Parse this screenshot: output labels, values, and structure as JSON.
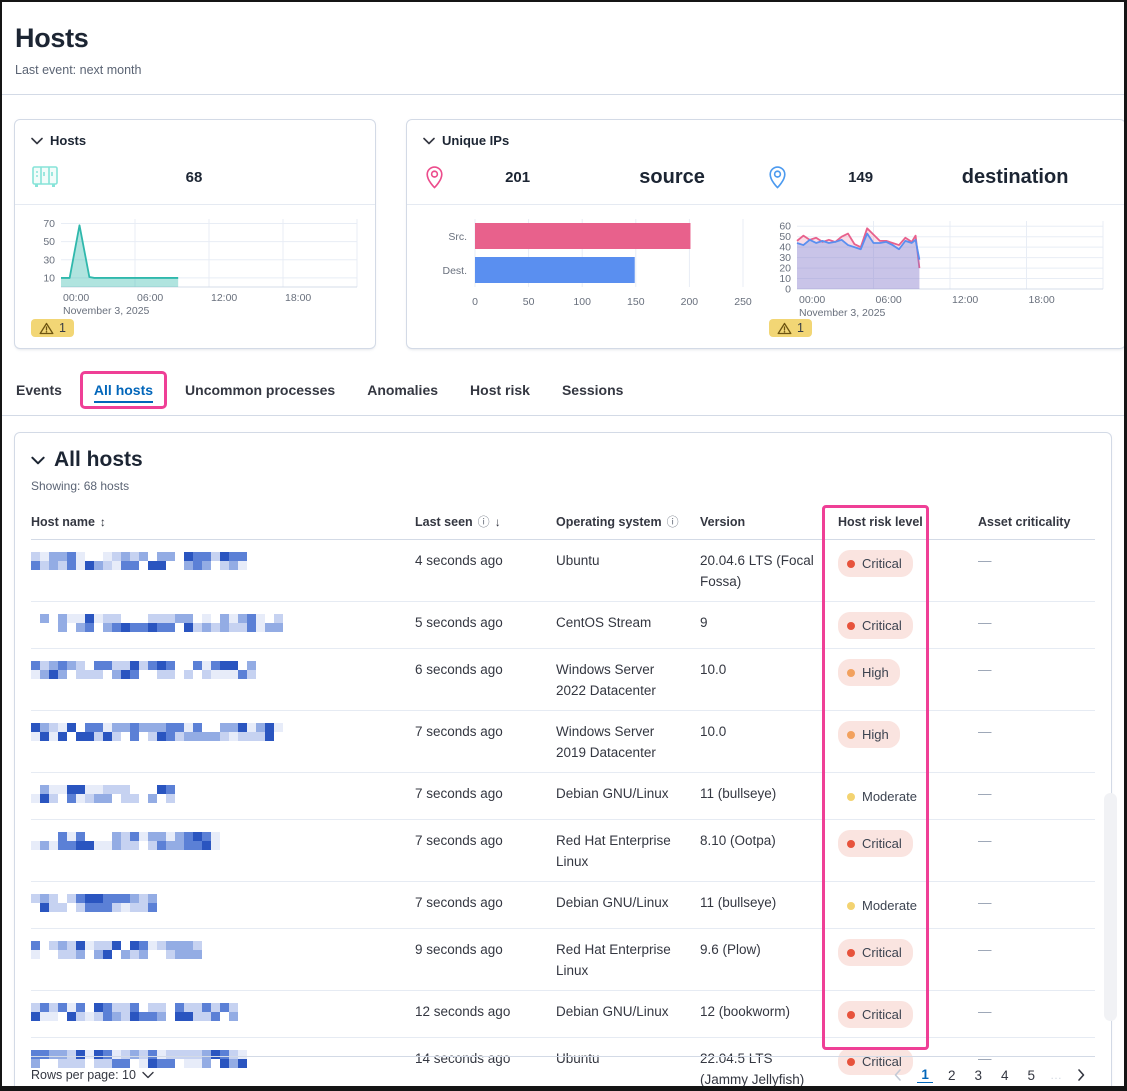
{
  "page": {
    "title": "Hosts",
    "subtitle": "Last event: next month"
  },
  "kpi_hosts": {
    "title": "Hosts",
    "count": "68",
    "warning": "1",
    "icon": "storage-icon"
  },
  "kpi_unique_ips": {
    "title": "Unique IPs",
    "source_count": "201",
    "source_label": "source",
    "source_icon": "map-pin-icon",
    "source_color": "#E8618C",
    "dest_count": "149",
    "dest_label": "destination",
    "dest_icon": "map-pin-icon",
    "dest_color": "#5A8FF0",
    "warning": "1"
  },
  "tabs": [
    {
      "label": "Events",
      "active": false
    },
    {
      "label": "All hosts",
      "active": true,
      "annotated": true
    },
    {
      "label": "Uncommon processes",
      "active": false
    },
    {
      "label": "Anomalies",
      "active": false
    },
    {
      "label": "Host risk",
      "active": false
    },
    {
      "label": "Sessions",
      "active": false
    }
  ],
  "annotation_color": "#EF3F96",
  "all_hosts": {
    "title": "All hosts",
    "showing": "Showing: 68 hosts",
    "columns": [
      {
        "label": "Host name",
        "sort": "both"
      },
      {
        "label": "Last seen",
        "info": true,
        "sort": "desc"
      },
      {
        "label": "Operating system",
        "info": true
      },
      {
        "label": "Version"
      },
      {
        "label": "Host risk level"
      },
      {
        "label": "Asset criticality"
      }
    ],
    "rows": [
      {
        "name_redacted": true,
        "name_width": 216,
        "last_seen": "4 seconds ago",
        "os": "Ubuntu",
        "version": "20.04.6 LTS (Focal Fossa)",
        "risk": "Critical",
        "asset_criticality": "—"
      },
      {
        "name_redacted": true,
        "name_width": 256,
        "last_seen": "5 seconds ago",
        "os": "CentOS Stream",
        "version": "9",
        "risk": "Critical",
        "asset_criticality": "—"
      },
      {
        "name_redacted": true,
        "name_width": 238,
        "last_seen": "6 seconds ago",
        "os": "Windows Server 2022 Datacenter",
        "version": "10.0",
        "risk": "High",
        "asset_criticality": "—"
      },
      {
        "name_redacted": true,
        "name_width": 250,
        "last_seen": "7 seconds ago",
        "os": "Windows Server 2019 Datacenter",
        "version": "10.0",
        "risk": "High",
        "asset_criticality": "—"
      },
      {
        "name_redacted": true,
        "name_width": 142,
        "last_seen": "7 seconds ago",
        "os": "Debian GNU/Linux",
        "version": "11 (bullseye)",
        "risk": "Moderate",
        "asset_criticality": "—"
      },
      {
        "name_redacted": true,
        "name_width": 190,
        "last_seen": "7 seconds ago",
        "os": "Red Hat Enterprise Linux",
        "version": "8.10 (Ootpa)",
        "risk": "Critical",
        "asset_criticality": "—"
      },
      {
        "name_redacted": true,
        "name_width": 126,
        "last_seen": "7 seconds ago",
        "os": "Debian GNU/Linux",
        "version": "11 (bullseye)",
        "risk": "Moderate",
        "asset_criticality": "—"
      },
      {
        "name_redacted": true,
        "name_width": 170,
        "last_seen": "9 seconds ago",
        "os": "Red Hat Enterprise Linux",
        "version": "9.6 (Plow)",
        "risk": "Critical",
        "asset_criticality": "—"
      },
      {
        "name_redacted": true,
        "name_width": 206,
        "last_seen": "12 seconds ago",
        "os": "Debian GNU/Linux",
        "version": "12 (bookworm)",
        "risk": "Critical",
        "asset_criticality": "—"
      },
      {
        "name_redacted": true,
        "name_width": 214,
        "last_seen": "14 seconds ago",
        "os": "Ubuntu",
        "version": "22.04.5 LTS (Jammy Jellyfish)",
        "risk": "Critical",
        "asset_criticality": "—"
      }
    ],
    "footer": {
      "rows_per_page_label": "Rows per page: 10",
      "pages": [
        "1",
        "2",
        "3",
        "4",
        "5"
      ],
      "active_page": "1",
      "ellipsis": "…"
    }
  },
  "risk_badge_colors": {
    "critical_dot": "#E7533C",
    "high_dot": "#F2A15E",
    "moderate_dot": "#F3D371",
    "pill_bg": "#FAE4E0"
  },
  "chart_data": [
    {
      "id": "hosts_over_time",
      "type": "area",
      "title": "Hosts",
      "x_range": [
        0,
        24
      ],
      "y_range": [
        0,
        75
      ],
      "y_ticks": [
        10,
        30,
        50,
        70
      ],
      "x_grid": [
        6,
        12,
        18,
        24
      ],
      "x_tick_labels": [
        {
          "v": 0,
          "label": "00:00"
        },
        {
          "v": 6,
          "label": "06:00"
        },
        {
          "v": 12,
          "label": "12:00"
        },
        {
          "v": 18,
          "label": "18:00"
        }
      ],
      "date_label": "November 3, 2025",
      "series": [
        {
          "name": "hosts",
          "color": "#2FB8AC",
          "fill": "#2FB8AC",
          "fill_opacity": 0.38,
          "points": [
            [
              0,
              10
            ],
            [
              0.7,
              10
            ],
            [
              1.5,
              68
            ],
            [
              2.3,
              11
            ],
            [
              2.7,
              10
            ],
            [
              9.5,
              10
            ]
          ]
        }
      ]
    },
    {
      "id": "unique_ips_bar",
      "type": "bar",
      "categories": [
        "Src.",
        "Dest."
      ],
      "values": [
        201,
        149
      ],
      "colors": [
        "#E8618C",
        "#5A8FF0"
      ],
      "x_ticks": [
        0,
        50,
        100,
        150,
        200,
        250
      ],
      "x_range": [
        0,
        250
      ]
    },
    {
      "id": "unique_ips_over_time",
      "type": "area",
      "x_range": [
        0,
        24
      ],
      "y_range": [
        0,
        65
      ],
      "y_ticks": [
        0,
        10,
        20,
        30,
        40,
        50,
        60
      ],
      "x_grid": [
        6,
        12,
        18,
        24
      ],
      "x_tick_labels": [
        {
          "v": 0,
          "label": "00:00"
        },
        {
          "v": 6,
          "label": "06:00"
        },
        {
          "v": 12,
          "label": "12:00"
        },
        {
          "v": 18,
          "label": "18:00"
        }
      ],
      "date_label": "November 3, 2025",
      "series": [
        {
          "name": "source",
          "color": "#E8618C",
          "fill": "#E8618C",
          "fill_opacity": 0.22,
          "points": [
            [
              0,
              46
            ],
            [
              0.5,
              51
            ],
            [
              1,
              47
            ],
            [
              1.5,
              49
            ],
            [
              2,
              45
            ],
            [
              2.5,
              47
            ],
            [
              3,
              45
            ],
            [
              3.5,
              50
            ],
            [
              4,
              53
            ],
            [
              4.5,
              43
            ],
            [
              5,
              40
            ],
            [
              5.5,
              58
            ],
            [
              6,
              52
            ],
            [
              6.5,
              46
            ],
            [
              7,
              46
            ],
            [
              7.5,
              44
            ],
            [
              8,
              42
            ],
            [
              8.5,
              49
            ],
            [
              9,
              45
            ],
            [
              9.3,
              51
            ],
            [
              9.6,
              20
            ]
          ]
        },
        {
          "name": "destination",
          "color": "#5A8FF0",
          "fill": "#5A8FF0",
          "fill_opacity": 0.3,
          "points": [
            [
              0,
              44
            ],
            [
              0.5,
              42
            ],
            [
              1,
              47
            ],
            [
              1.5,
              44
            ],
            [
              2,
              46
            ],
            [
              2.5,
              44
            ],
            [
              3,
              45
            ],
            [
              3.5,
              47
            ],
            [
              4,
              42
            ],
            [
              4.5,
              40
            ],
            [
              5,
              38
            ],
            [
              5.5,
              53
            ],
            [
              6,
              44
            ],
            [
              6.5,
              44
            ],
            [
              7,
              45
            ],
            [
              7.5,
              42
            ],
            [
              8,
              38
            ],
            [
              8.5,
              46
            ],
            [
              9,
              44
            ],
            [
              9.3,
              47
            ],
            [
              9.6,
              28
            ]
          ]
        }
      ]
    }
  ]
}
